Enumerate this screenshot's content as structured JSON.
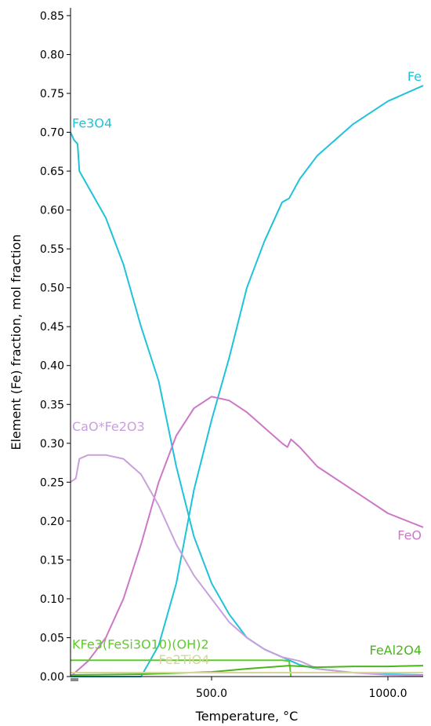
{
  "chart_data": {
    "type": "line",
    "title": "",
    "xlabel": "Temperature, °C",
    "ylabel": "Element (Fe) fraction, mol fraction",
    "xlim": [
      100,
      1100
    ],
    "ylim": [
      0,
      0.86
    ],
    "x_ticks": [
      500,
      1000
    ],
    "x_tick_labels": [
      "500.0",
      "1000.0"
    ],
    "y_ticks": [
      0.0,
      0.05,
      0.1,
      0.15,
      0.2,
      0.25,
      0.3,
      0.35,
      0.4,
      0.45,
      0.5,
      0.55,
      0.6,
      0.65,
      0.7,
      0.75,
      0.8,
      0.85
    ],
    "y_tick_labels": [
      "0.00",
      "0.05",
      "0.10",
      "0.15",
      "0.20",
      "0.25",
      "0.30",
      "0.35",
      "0.40",
      "0.45",
      "0.50",
      "0.55",
      "0.60",
      "0.65",
      "0.70",
      "0.75",
      "0.80",
      "0.85"
    ],
    "grid": false,
    "legend": "none",
    "series": [
      {
        "name": "Fe3O4",
        "color": "#1fc3d8",
        "points": [
          [
            100,
            0.7
          ],
          [
            110,
            0.69
          ],
          [
            120,
            0.685
          ],
          [
            125,
            0.65
          ],
          [
            150,
            0.63
          ],
          [
            200,
            0.59
          ],
          [
            250,
            0.53
          ],
          [
            300,
            0.45
          ],
          [
            350,
            0.38
          ],
          [
            400,
            0.27
          ],
          [
            450,
            0.18
          ],
          [
            500,
            0.12
          ],
          [
            550,
            0.08
          ],
          [
            600,
            0.05
          ],
          [
            650,
            0.035
          ],
          [
            700,
            0.025
          ],
          [
            750,
            0.015
          ],
          [
            800,
            0.01
          ],
          [
            900,
            0.005
          ],
          [
            1000,
            0.003
          ],
          [
            1100,
            0.002
          ]
        ]
      },
      {
        "name": "Fe",
        "color": "#1fc3d8",
        "points": [
          [
            100,
            0.0
          ],
          [
            300,
            0.0
          ],
          [
            350,
            0.04
          ],
          [
            400,
            0.12
          ],
          [
            450,
            0.24
          ],
          [
            500,
            0.33
          ],
          [
            550,
            0.41
          ],
          [
            600,
            0.5
          ],
          [
            650,
            0.56
          ],
          [
            700,
            0.61
          ],
          [
            720,
            0.615
          ],
          [
            750,
            0.64
          ],
          [
            800,
            0.67
          ],
          [
            900,
            0.71
          ],
          [
            1000,
            0.74
          ],
          [
            1100,
            0.76
          ]
        ]
      },
      {
        "name": "FeO",
        "color": "#cc77c8",
        "points": [
          [
            100,
            0.0
          ],
          [
            150,
            0.02
          ],
          [
            200,
            0.05
          ],
          [
            250,
            0.1
          ],
          [
            300,
            0.17
          ],
          [
            350,
            0.25
          ],
          [
            400,
            0.31
          ],
          [
            450,
            0.345
          ],
          [
            500,
            0.36
          ],
          [
            550,
            0.355
          ],
          [
            600,
            0.34
          ],
          [
            650,
            0.32
          ],
          [
            700,
            0.3
          ],
          [
            715,
            0.295
          ],
          [
            725,
            0.305
          ],
          [
            750,
            0.295
          ],
          [
            800,
            0.27
          ],
          [
            900,
            0.24
          ],
          [
            1000,
            0.21
          ],
          [
            1100,
            0.192
          ]
        ]
      },
      {
        "name": "CaO*Fe2O3",
        "color": "#c9a0dc",
        "points": [
          [
            100,
            0.25
          ],
          [
            115,
            0.255
          ],
          [
            125,
            0.28
          ],
          [
            150,
            0.285
          ],
          [
            200,
            0.285
          ],
          [
            250,
            0.28
          ],
          [
            300,
            0.26
          ],
          [
            350,
            0.22
          ],
          [
            400,
            0.17
          ],
          [
            450,
            0.13
          ],
          [
            500,
            0.1
          ],
          [
            550,
            0.07
          ],
          [
            600,
            0.05
          ],
          [
            650,
            0.035
          ],
          [
            700,
            0.025
          ],
          [
            750,
            0.02
          ],
          [
            800,
            0.01
          ],
          [
            900,
            0.005
          ],
          [
            1000,
            0.002
          ],
          [
            1100,
            0.001
          ]
        ]
      },
      {
        "name": "KFe3(FeSi3O10)(OH)2",
        "color": "#5fcb2a",
        "points": [
          [
            100,
            0.021
          ],
          [
            200,
            0.021
          ],
          [
            300,
            0.021
          ],
          [
            400,
            0.021
          ],
          [
            500,
            0.021
          ],
          [
            600,
            0.021
          ],
          [
            700,
            0.021
          ],
          [
            720,
            0.02
          ],
          [
            725,
            0.0
          ]
        ]
      },
      {
        "name": "FeAl2O4",
        "color": "#4bb520",
        "points": [
          [
            100,
            0.002
          ],
          [
            300,
            0.003
          ],
          [
            500,
            0.006
          ],
          [
            600,
            0.01
          ],
          [
            720,
            0.014
          ],
          [
            800,
            0.012
          ],
          [
            900,
            0.013
          ],
          [
            1000,
            0.013
          ],
          [
            1100,
            0.014
          ]
        ]
      },
      {
        "name": "Fe2TiO4",
        "color": "#d8d39a",
        "points": [
          [
            100,
            0.005
          ],
          [
            300,
            0.005
          ],
          [
            500,
            0.005
          ],
          [
            700,
            0.005
          ],
          [
            900,
            0.005
          ],
          [
            1100,
            0.005
          ]
        ]
      }
    ],
    "labels": [
      {
        "text": "Fe3O4",
        "x": 100,
        "y": 0.7
      },
      {
        "text": "Fe",
        "x": 1100,
        "y": 0.76
      },
      {
        "text": "FeO",
        "x": 1100,
        "y": 0.17
      },
      {
        "text": "CaO*Fe2O3",
        "x": 100,
        "y": 0.31
      },
      {
        "text": "KFe3(FeSi3O10)(OH)2",
        "x": 100,
        "y": 0.03
      },
      {
        "text": "FeAl2O4",
        "x": 1100,
        "y": 0.022
      },
      {
        "text": "Fe2TiO4",
        "x": 350,
        "y": 0.01
      }
    ]
  }
}
